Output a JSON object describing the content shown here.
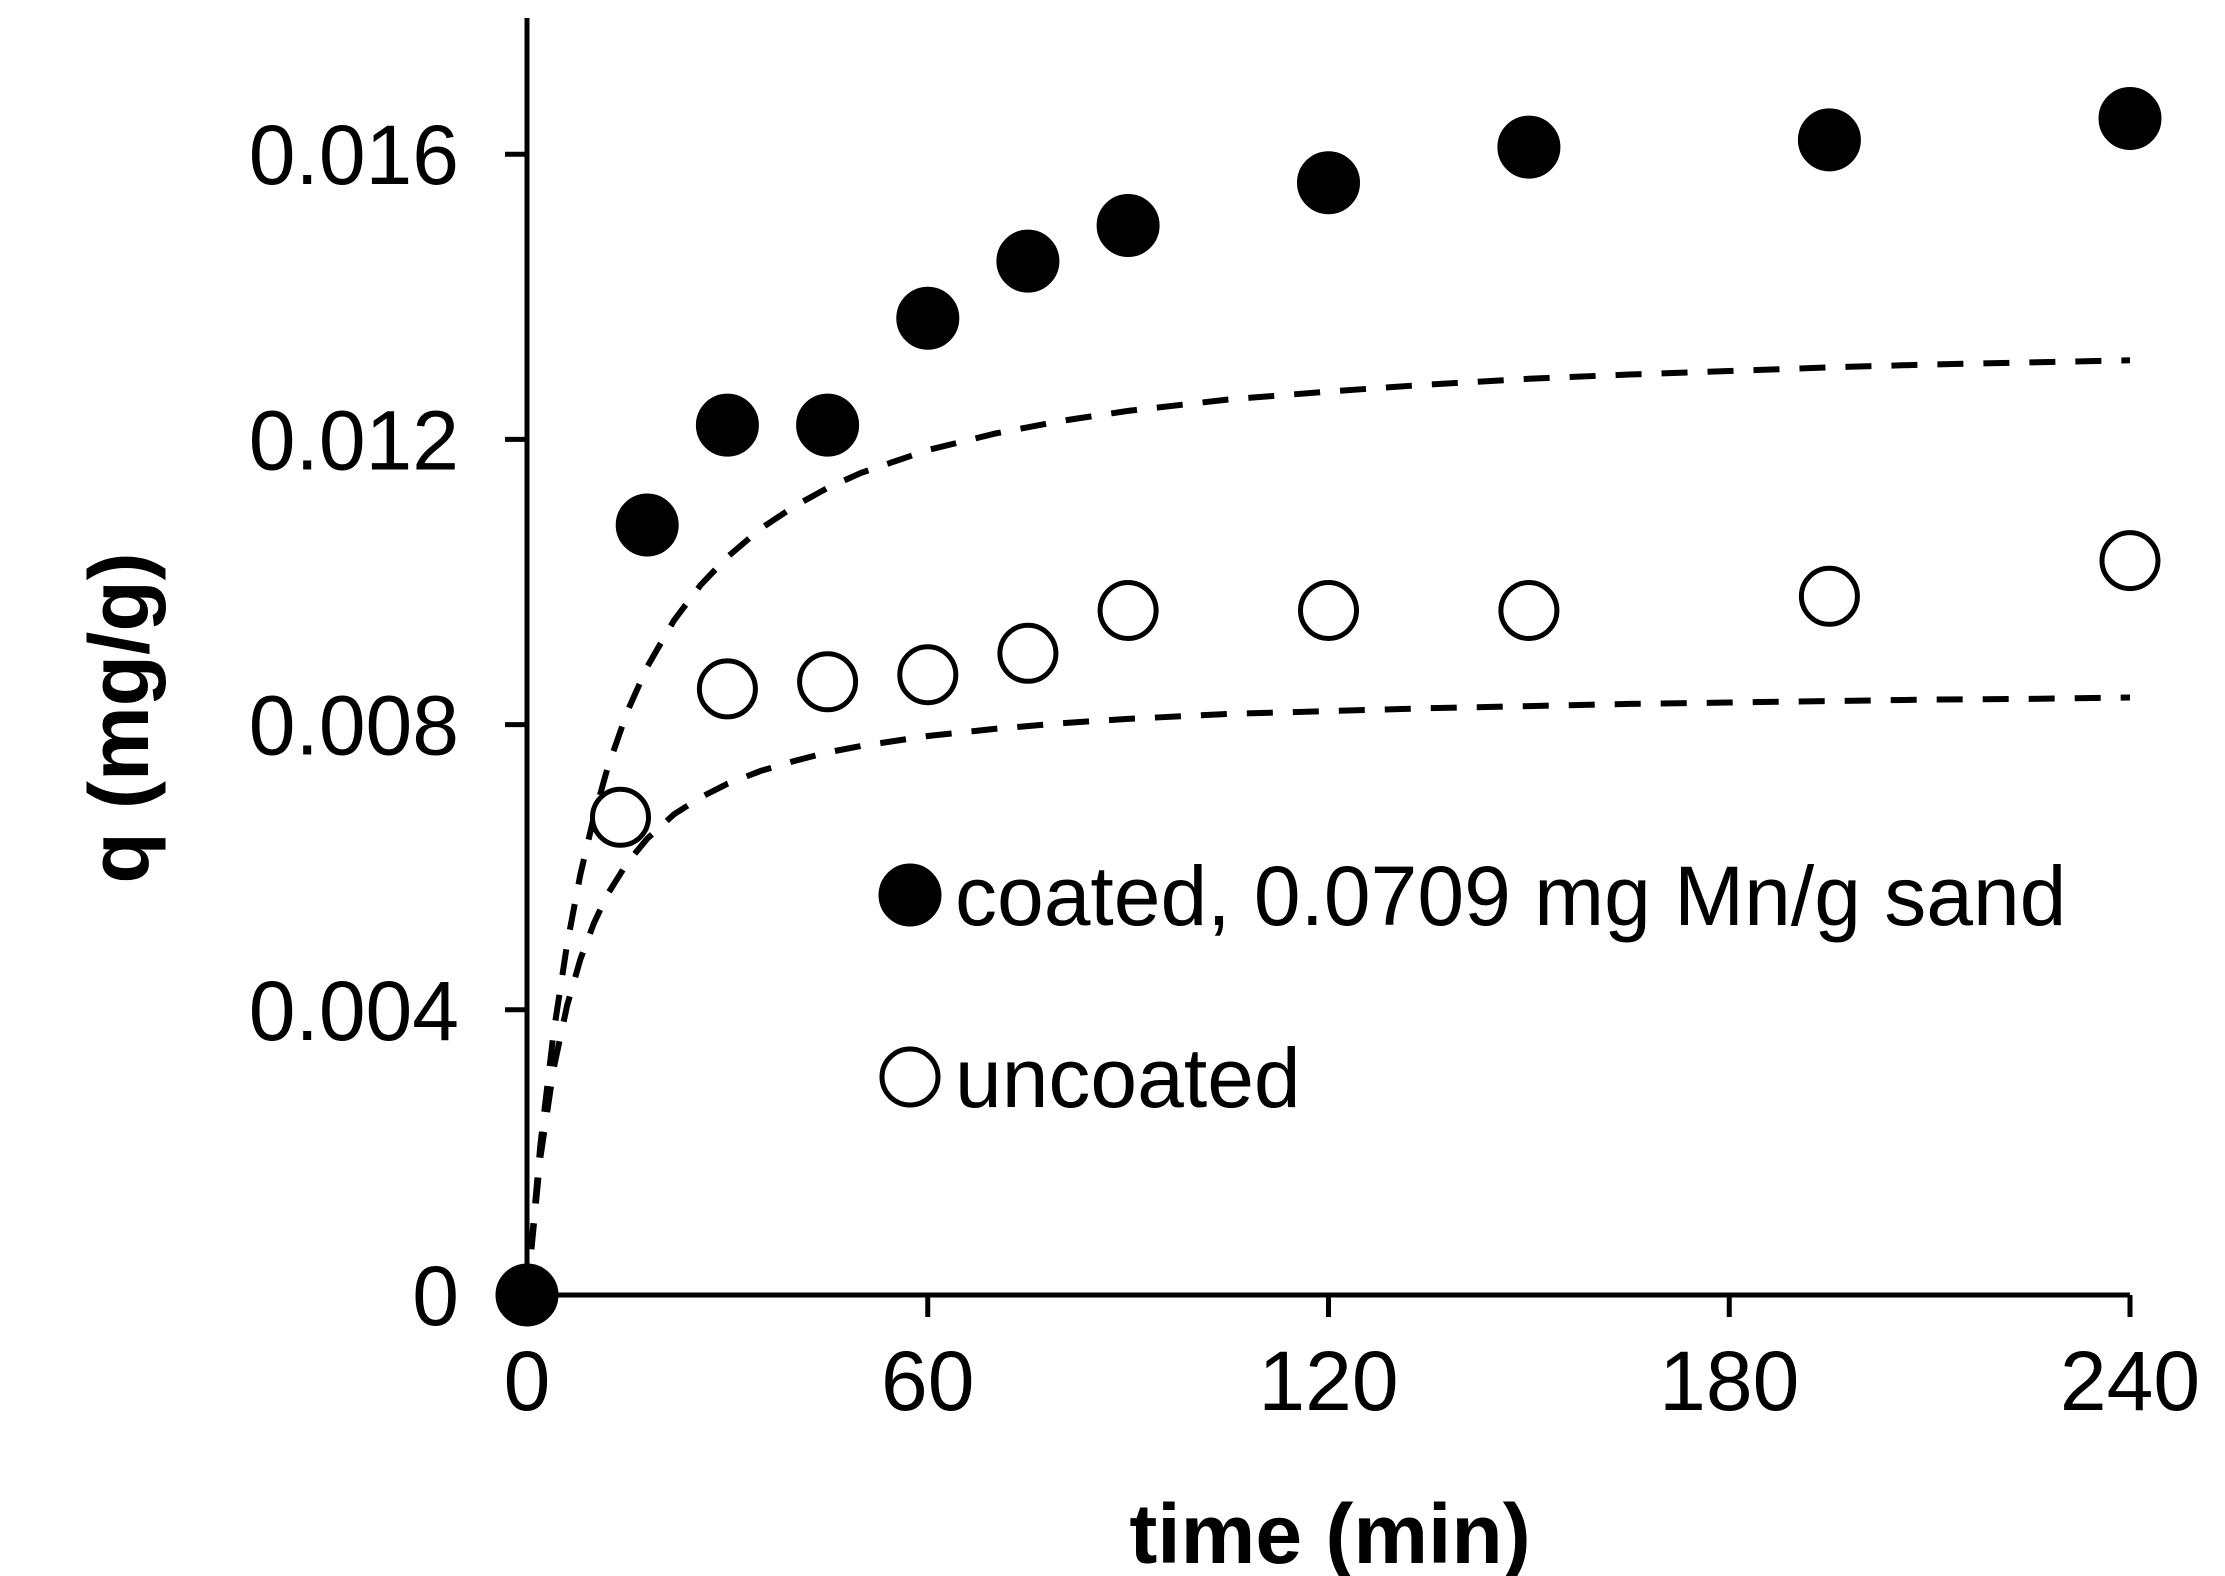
{
  "chart_data": {
    "type": "scatter",
    "title": "",
    "xlabel": "time (min)",
    "ylabel": "q (mg/g)",
    "xlim": [
      0,
      240
    ],
    "ylim": [
      0,
      0.018
    ],
    "xticks": [
      0,
      60,
      120,
      180,
      240
    ],
    "xtick_labels": [
      "0",
      "60",
      "120",
      "180",
      "240"
    ],
    "yticks": [
      0,
      0.004,
      0.008,
      0.012,
      0.016
    ],
    "ytick_labels": [
      "0",
      "0.004",
      "0.008",
      "0.012",
      "0.016"
    ],
    "grid": false,
    "legend_position": "center-right",
    "series": [
      {
        "name": "coated, 0.0709 mg Mn/g sand",
        "marker": "filled-circle",
        "color": "#000000",
        "x": [
          0,
          18,
          30,
          45,
          60,
          75,
          90,
          120,
          150,
          195,
          240
        ],
        "y": [
          0,
          0.0108,
          0.0122,
          0.0122,
          0.0137,
          0.0145,
          0.015,
          0.0156,
          0.0161,
          0.0162,
          0.0165
        ],
        "fit": {
          "style": "dashed",
          "x": [
            0,
            2,
            4,
            6,
            8,
            10,
            12,
            15,
            18,
            22,
            26,
            30,
            35,
            40,
            45,
            50,
            60,
            70,
            80,
            90,
            105,
            120,
            135,
            150,
            165,
            180,
            195,
            210,
            225,
            240
          ],
          "y": [
            0,
            0.00211,
            0.00369,
            0.00492,
            0.0059,
            0.0067,
            0.00737,
            0.00818,
            0.00881,
            0.00946,
            0.00996,
            0.01035,
            0.01075,
            0.01106,
            0.01132,
            0.01153,
            0.01185,
            0.01208,
            0.01226,
            0.0124,
            0.01256,
            0.01267,
            0.01277,
            0.01285,
            0.01291,
            0.01296,
            0.01301,
            0.01305,
            0.01308,
            0.01311
          ]
        }
      },
      {
        "name": "uncoated",
        "marker": "open-circle",
        "color": "#000000",
        "x": [
          0,
          14,
          30,
          45,
          60,
          75,
          90,
          120,
          150,
          195,
          240
        ],
        "y": [
          0,
          0.0067,
          0.0085,
          0.0086,
          0.0087,
          0.009,
          0.0096,
          0.0096,
          0.0096,
          0.0098,
          0.0103
        ],
        "fit": {
          "style": "dashed",
          "x": [
            0,
            2,
            4,
            6,
            8,
            10,
            12,
            15,
            18,
            22,
            26,
            30,
            35,
            40,
            45,
            50,
            60,
            70,
            80,
            90,
            105,
            120,
            135,
            150,
            165,
            180,
            195,
            210,
            225,
            240
          ],
          "y": [
            0,
            0.00193,
            0.00318,
            0.00406,
            0.00471,
            0.00521,
            0.00561,
            0.00606,
            0.0064,
            0.00674,
            0.00698,
            0.00717,
            0.00735,
            0.00749,
            0.00761,
            0.0077,
            0.00784,
            0.00794,
            0.00802,
            0.00808,
            0.00815,
            0.00819,
            0.00823,
            0.00826,
            0.00829,
            0.00831,
            0.00833,
            0.00835,
            0.00836,
            0.00838
          ]
        }
      }
    ]
  }
}
